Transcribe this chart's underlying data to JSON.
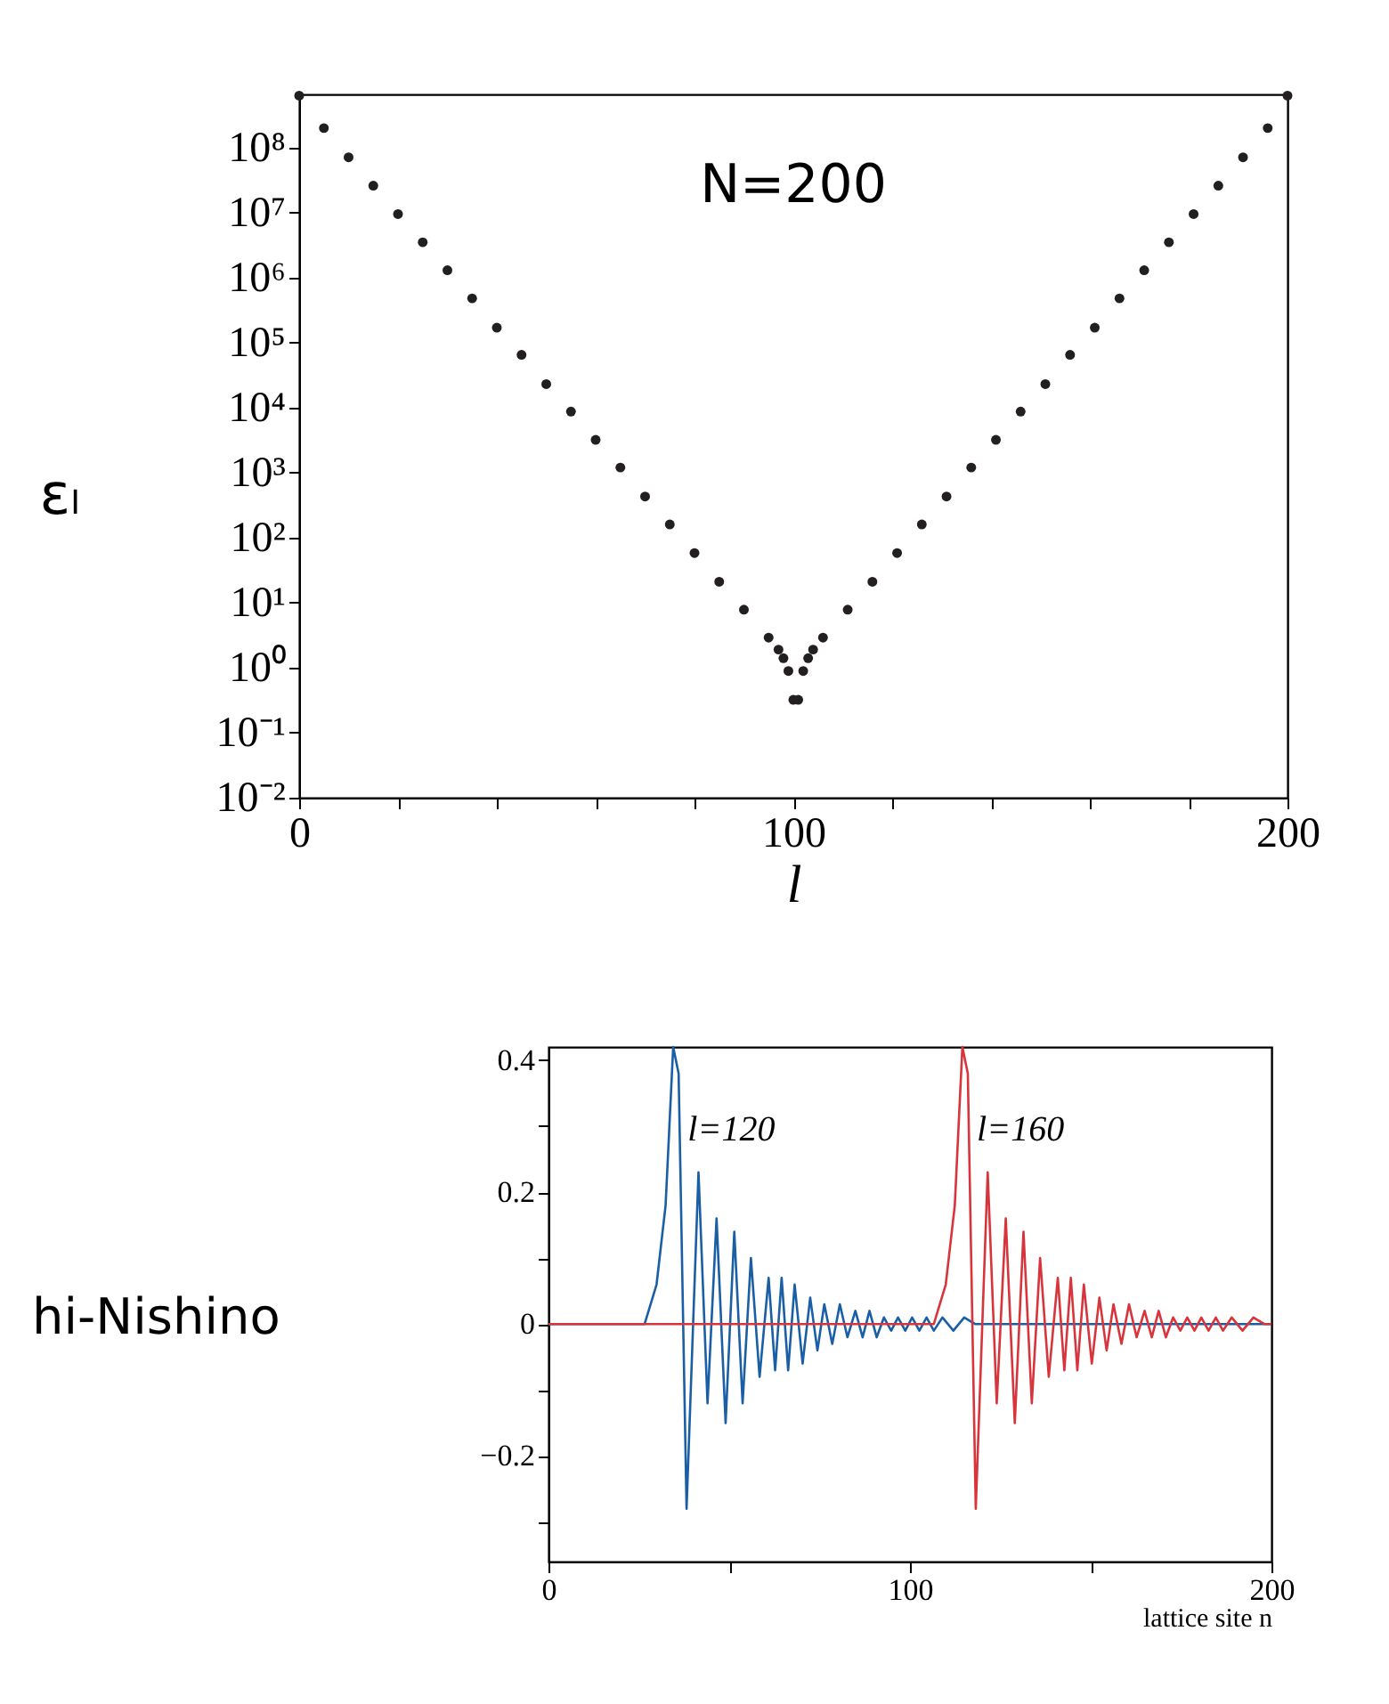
{
  "chart_data": [
    {
      "type": "scatter",
      "xlabel": "l",
      "ylabel": "εₗ",
      "annotations": [
        "N=200"
      ],
      "log": "y",
      "grid": false,
      "legend": false,
      "marker": "circle",
      "xlim": [
        0,
        200
      ],
      "xticks": [
        0,
        {
          "value": 20,
          "label": null
        },
        {
          "value": 40,
          "label": null
        },
        {
          "value": 60,
          "label": null
        },
        {
          "value": 80,
          "label": null
        },
        100,
        {
          "value": 120,
          "label": null
        },
        {
          "value": 140,
          "label": null
        },
        {
          "value": 160,
          "label": null
        },
        {
          "value": 180,
          "label": null
        },
        200
      ],
      "ylim": [
        0.01,
        660000000.0
      ],
      "yticks": [
        {
          "value": 0.01,
          "label": "10⁻²"
        },
        {
          "value": 0.1,
          "label": "10⁻¹"
        },
        {
          "value": 1,
          "label": "10⁰"
        },
        {
          "value": 10,
          "label": "10¹"
        },
        {
          "value": 100,
          "label": "10²"
        },
        {
          "value": 1000,
          "label": "10³"
        },
        {
          "value": 10000,
          "label": "10⁴"
        },
        {
          "value": 100000,
          "label": "10⁵"
        },
        {
          "value": 1000000,
          "label": "10⁶"
        },
        {
          "value": 10000000,
          "label": "10⁷"
        },
        {
          "value": 100000000,
          "label": "10⁸"
        }
      ],
      "series": [
        {
          "color": "#231f20",
          "x": [
            0,
            5,
            10,
            15,
            20,
            25,
            30,
            35,
            40,
            45,
            50,
            55,
            60,
            65,
            70,
            75,
            80,
            85,
            90,
            95,
            97,
            98,
            99,
            100,
            101,
            102,
            103,
            104,
            106,
            111,
            116,
            121,
            126,
            131,
            136,
            141,
            146,
            151,
            156,
            161,
            166,
            171,
            176,
            181,
            186,
            191,
            196,
            200
          ],
          "values": [
            630000000.0,
            200000000.0,
            71000000.0,
            26000000.0,
            9500000.0,
            3500000.0,
            1300000.0,
            480000.0,
            170000.0,
            65000.0,
            23000.0,
            8700.0,
            3200.0,
            1200.0,
            430,
            160,
            58,
            21,
            7.8,
            2.9,
            1.9,
            1.4,
            0.89,
            0.32,
            0.32,
            0.89,
            1.4,
            1.9,
            2.9,
            7.8,
            21,
            58,
            160,
            430,
            1200.0,
            3200.0,
            8700.0,
            23000.0,
            65000.0,
            170000.0,
            480000.0,
            1300000.0,
            3500000.0,
            9500000.0,
            26000000.0,
            71000000.0,
            200000000.0,
            630000000.0
          ]
        }
      ]
    },
    {
      "type": "line",
      "xlabel": "lattice site n",
      "annotations": [
        "hi-Nishino"
      ],
      "grid": false,
      "legend": false,
      "marker": "none",
      "line_style": "solid",
      "xlim": [
        0,
        200
      ],
      "xticks": [
        0,
        {
          "value": 50,
          "label": null
        },
        100,
        {
          "value": 150,
          "label": null
        },
        200
      ],
      "ylim": [
        -0.36,
        0.42
      ],
      "yticks": [
        {
          "value": -0.3,
          "label": null
        },
        -0.2,
        {
          "value": -0.1,
          "label": null
        },
        {
          "value": 0,
          "label": "0"
        },
        {
          "value": 0.1,
          "label": null
        },
        0.2,
        {
          "value": 0.3,
          "label": null
        },
        0.4
      ],
      "series": [
        {
          "name": "l=120",
          "color": "#1a5fa6",
          "x": [
            0,
            26.6,
            29.9,
            32.4,
            34.5,
            36,
            38.2,
            41.5,
            44,
            46.5,
            49,
            51.4,
            53.7,
            56,
            58.4,
            60.9,
            62.7,
            64.5,
            66.3,
            68.1,
            70.3,
            72.4,
            74.4,
            76.3,
            78.5,
            80.6,
            82.7,
            84.9,
            86.9,
            88.8,
            90.8,
            92.8,
            94.8,
            96.7,
            98.7,
            100.6,
            102.6,
            104.6,
            106.6,
            109,
            112,
            115,
            118,
            125,
            200
          ],
          "values": [
            0,
            0,
            0.06,
            0.18,
            0.42,
            0.38,
            -0.28,
            0.23,
            -0.12,
            0.16,
            -0.15,
            0.14,
            -0.12,
            0.1,
            -0.08,
            0.07,
            -0.07,
            0.07,
            -0.07,
            0.06,
            -0.06,
            0.04,
            -0.04,
            0.03,
            -0.03,
            0.03,
            -0.02,
            0.02,
            -0.02,
            0.02,
            -0.02,
            0.01,
            -0.01,
            0.01,
            -0.01,
            0.01,
            -0.01,
            0.01,
            -0.01,
            0.01,
            -0.01,
            0.01,
            0,
            0,
            0
          ]
        },
        {
          "name": "l=160",
          "color": "#d8343c",
          "x": [
            0,
            106.6,
            109.9,
            112.4,
            114.5,
            116,
            118.2,
            121.5,
            124,
            126.5,
            129,
            131.4,
            133.7,
            136,
            138.4,
            140.9,
            142.7,
            144.5,
            146.3,
            148.1,
            150.3,
            152.4,
            154.4,
            156.3,
            158.5,
            160.6,
            162.7,
            164.9,
            166.9,
            168.8,
            170.8,
            172.8,
            174.8,
            176.7,
            178.7,
            180.6,
            182.6,
            184.6,
            186.6,
            189,
            192,
            195,
            198,
            200
          ],
          "values": [
            0,
            0,
            0.06,
            0.18,
            0.42,
            0.38,
            -0.28,
            0.23,
            -0.12,
            0.16,
            -0.15,
            0.14,
            -0.12,
            0.1,
            -0.08,
            0.07,
            -0.07,
            0.07,
            -0.07,
            0.06,
            -0.06,
            0.04,
            -0.04,
            0.03,
            -0.03,
            0.03,
            -0.02,
            0.02,
            -0.02,
            0.02,
            -0.02,
            0.01,
            -0.01,
            0.01,
            -0.01,
            0.01,
            -0.01,
            0.01,
            -0.01,
            0.01,
            -0.01,
            0.01,
            0,
            0
          ]
        }
      ]
    }
  ]
}
